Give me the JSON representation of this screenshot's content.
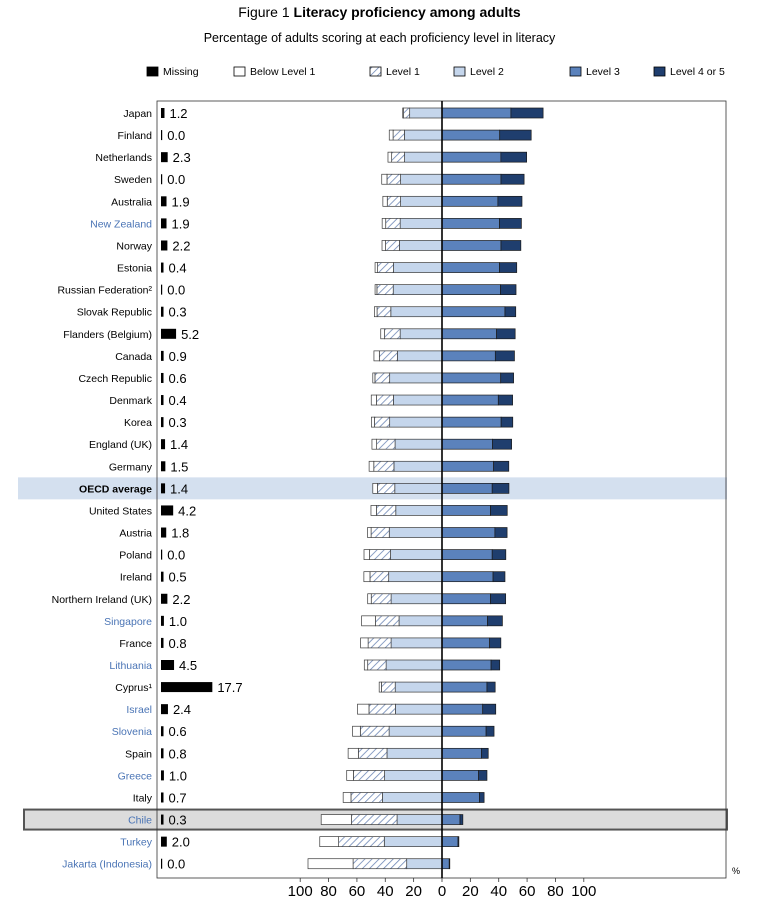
{
  "figure_label": "Figure 1",
  "title": "Literacy proficiency among adults",
  "subtitle": "Percentage of adults scoring at each proficiency level in literacy",
  "colors": {
    "missing": "#000000",
    "below1": "#ffffff",
    "level1": "#ffffff",
    "level1_hatch": "#6d87b5",
    "level2": "#c5d6ec",
    "level3": "#5b82bc",
    "level45": "#1f3e6e",
    "label_blue": "#4a74b5",
    "oecd_band": "#d4e0ef",
    "chile_band": "#dcdcdc"
  },
  "chart_data": {
    "type": "bar",
    "stacking": "diverging",
    "legend": [
      {
        "key": "missing",
        "label": "Missing"
      },
      {
        "key": "below1",
        "label": "Below Level 1"
      },
      {
        "key": "level1",
        "label": "Level 1"
      },
      {
        "key": "level2",
        "label": "Level 2"
      },
      {
        "key": "level3",
        "label": "Level 3"
      },
      {
        "key": "level45",
        "label": "Level 4 or 5"
      }
    ],
    "legend_position": "top",
    "xlim": [
      -100,
      100
    ],
    "x_ticks": [
      "100",
      "80",
      "60",
      "40",
      "20",
      "0",
      "20",
      "40",
      "60",
      "80",
      "100"
    ],
    "x_unit": "%",
    "rows": [
      {
        "label": "Japan",
        "missing_label": "1.2",
        "missing": 1.2,
        "below1": 0.6,
        "level1": 4.3,
        "level2": 22.8,
        "level3": 48.6,
        "level45": 22.7,
        "style": "black"
      },
      {
        "label": "Finland",
        "missing_label": "0.0",
        "missing": 0.0,
        "below1": 2.7,
        "level1": 8.0,
        "level2": 26.5,
        "level3": 40.7,
        "level45": 22.2,
        "style": "black"
      },
      {
        "label": "Netherlands",
        "missing_label": "2.3",
        "missing": 2.3,
        "below1": 2.6,
        "level1": 9.1,
        "level2": 26.4,
        "level3": 41.5,
        "level45": 18.2,
        "style": "black"
      },
      {
        "label": "Sweden",
        "missing_label": "0.0",
        "missing": 0.0,
        "below1": 3.7,
        "level1": 9.6,
        "level2": 29.2,
        "level3": 41.6,
        "level45": 16.3,
        "style": "black"
      },
      {
        "label": "Australia",
        "missing_label": "1.9",
        "missing": 1.9,
        "below1": 3.1,
        "level1": 9.4,
        "level2": 29.2,
        "level3": 39.4,
        "level45": 17.0,
        "style": "black"
      },
      {
        "label": "New Zealand",
        "missing_label": "1.9",
        "missing": 1.9,
        "below1": 2.5,
        "level1": 10.2,
        "level2": 29.5,
        "level3": 40.5,
        "level45": 15.5,
        "style": "blue"
      },
      {
        "label": "Norway",
        "missing_label": "2.2",
        "missing": 2.2,
        "below1": 2.5,
        "level1": 9.8,
        "level2": 30.0,
        "level3": 41.6,
        "level45": 14.0,
        "style": "black"
      },
      {
        "label": "Estonia",
        "missing_label": "0.4",
        "missing": 0.4,
        "below1": 1.8,
        "level1": 11.2,
        "level2": 34.2,
        "level3": 40.5,
        "level45": 12.2,
        "style": "black"
      },
      {
        "label": "Russian Federation²",
        "missing_label": "0.0",
        "missing": 0.0,
        "below1": 1.3,
        "level1": 11.5,
        "level2": 34.4,
        "level3": 41.2,
        "level45": 11.0,
        "style": "black"
      },
      {
        "label": "Slovak Republic",
        "missing_label": "0.3",
        "missing": 0.3,
        "below1": 1.9,
        "level1": 9.7,
        "level2": 36.1,
        "level3": 44.4,
        "level45": 7.6,
        "style": "black"
      },
      {
        "label": "Flanders (Belgium)",
        "missing_label": "5.2",
        "missing": 5.2,
        "below1": 2.7,
        "level1": 11.0,
        "level2": 29.5,
        "level3": 38.5,
        "level45": 13.1,
        "style": "black"
      },
      {
        "label": "Canada",
        "missing_label": "0.9",
        "missing": 0.9,
        "below1": 3.8,
        "level1": 12.7,
        "level2": 31.5,
        "level3": 37.6,
        "level45": 13.5,
        "style": "black"
      },
      {
        "label": "Czech Republic",
        "missing_label": "0.6",
        "missing": 0.6,
        "below1": 1.5,
        "level1": 10.4,
        "level2": 36.9,
        "level3": 41.4,
        "level45": 9.1,
        "style": "black"
      },
      {
        "label": "Denmark",
        "missing_label": "0.4",
        "missing": 0.4,
        "below1": 3.7,
        "level1": 11.9,
        "level2": 34.3,
        "level3": 39.7,
        "level45": 10.1,
        "style": "black"
      },
      {
        "label": "Korea",
        "missing_label": "0.3",
        "missing": 0.3,
        "below1": 2.2,
        "level1": 10.7,
        "level2": 36.9,
        "level3": 41.7,
        "level45": 8.2,
        "style": "black"
      },
      {
        "label": "England (UK)",
        "missing_label": "1.4",
        "missing": 1.4,
        "below1": 3.3,
        "level1": 13.0,
        "level2": 33.1,
        "level3": 35.6,
        "level45": 13.5,
        "style": "black"
      },
      {
        "label": "Germany",
        "missing_label": "1.5",
        "missing": 1.5,
        "below1": 3.3,
        "level1": 14.2,
        "level2": 33.9,
        "level3": 36.4,
        "level45": 10.7,
        "style": "black"
      },
      {
        "label": "OECD average",
        "missing_label": "1.4",
        "missing": 1.4,
        "below1": 3.3,
        "level1": 12.2,
        "level2": 33.3,
        "level3": 35.4,
        "level45": 11.8,
        "style": "bold"
      },
      {
        "label": "United States",
        "missing_label": "4.2",
        "missing": 4.2,
        "below1": 3.9,
        "level1": 13.6,
        "level2": 32.6,
        "level3": 34.2,
        "level45": 11.8,
        "style": "black"
      },
      {
        "label": "Austria",
        "missing_label": "1.8",
        "missing": 1.8,
        "below1": 2.5,
        "level1": 12.8,
        "level2": 37.2,
        "level3": 37.3,
        "level45": 8.6,
        "style": "black"
      },
      {
        "label": "Poland",
        "missing_label": "0.0",
        "missing": 0.0,
        "below1": 3.9,
        "level1": 14.8,
        "level2": 36.3,
        "level3": 35.4,
        "level45": 9.6,
        "style": "black"
      },
      {
        "label": "Ireland",
        "missing_label": "0.5",
        "missing": 0.5,
        "below1": 4.3,
        "level1": 13.2,
        "level2": 37.6,
        "level3": 36.0,
        "level45": 8.4,
        "style": "black"
      },
      {
        "label": "Northern Ireland (UK)",
        "missing_label": "2.2",
        "missing": 2.2,
        "below1": 2.5,
        "level1": 14.0,
        "level2": 35.9,
        "level3": 34.2,
        "level45": 10.7,
        "style": "black"
      },
      {
        "label": "Singapore",
        "missing_label": "1.0",
        "missing": 1.0,
        "below1": 9.8,
        "level1": 16.6,
        "level2": 30.3,
        "level3": 32.1,
        "level45": 10.5,
        "style": "blue"
      },
      {
        "label": "France",
        "missing_label": "0.8",
        "missing": 0.8,
        "below1": 5.3,
        "level1": 16.2,
        "level2": 35.9,
        "level3": 33.6,
        "level45": 7.9,
        "style": "black"
      },
      {
        "label": "Lithuania",
        "missing_label": "4.5",
        "missing": 4.5,
        "below1": 2.4,
        "level1": 13.0,
        "level2": 39.4,
        "level3": 34.6,
        "level45": 6.1,
        "style": "blue"
      },
      {
        "label": "Cyprus¹",
        "missing_label": "17.7",
        "missing": 17.7,
        "below1": 1.6,
        "level1": 9.7,
        "level2": 33.0,
        "level3": 31.7,
        "level45": 5.8,
        "style": "black"
      },
      {
        "label": "Israel",
        "missing_label": "2.4",
        "missing": 2.4,
        "below1": 8.1,
        "level1": 18.6,
        "level2": 32.9,
        "level3": 28.7,
        "level45": 9.2,
        "style": "blue"
      },
      {
        "label": "Slovenia",
        "missing_label": "0.6",
        "missing": 0.6,
        "below1": 5.5,
        "level1": 20.3,
        "level2": 37.3,
        "level3": 31.1,
        "level45": 5.6,
        "style": "blue"
      },
      {
        "label": "Spain",
        "missing_label": "0.8",
        "missing": 0.8,
        "below1": 7.2,
        "level1": 20.2,
        "level2": 38.8,
        "level3": 27.8,
        "level45": 4.8,
        "style": "black"
      },
      {
        "label": "Greece",
        "missing_label": "1.0",
        "missing": 1.0,
        "below1": 4.7,
        "level1": 22.0,
        "level2": 40.5,
        "level3": 25.8,
        "level45": 5.9,
        "style": "blue"
      },
      {
        "label": "Italy",
        "missing_label": "0.7",
        "missing": 0.7,
        "below1": 5.5,
        "level1": 22.2,
        "level2": 42.0,
        "level3": 26.4,
        "level45": 3.3,
        "style": "black"
      },
      {
        "label": "Chile",
        "missing_label": "0.3",
        "missing": 0.3,
        "below1": 21.4,
        "level1": 32.1,
        "level2": 31.7,
        "level3": 12.7,
        "level45": 2.0,
        "style": "blue",
        "highlight": true
      },
      {
        "label": "Turkey",
        "missing_label": "2.0",
        "missing": 2.0,
        "below1": 13.3,
        "level1": 32.2,
        "level2": 40.7,
        "level3": 11.3,
        "level45": 0.6,
        "style": "blue"
      },
      {
        "label": "Jakarta (Indonesia)",
        "missing_label": "0.0",
        "missing": 0.0,
        "below1": 31.8,
        "level1": 37.8,
        "level2": 24.9,
        "level3": 5.1,
        "level45": 0.4,
        "style": "blue"
      }
    ]
  }
}
